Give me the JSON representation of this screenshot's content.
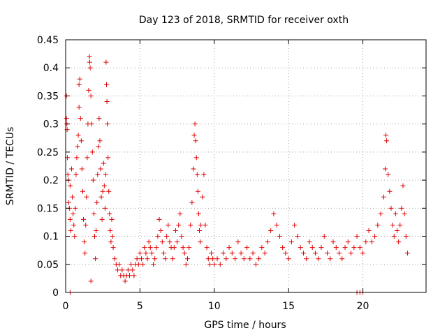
{
  "chart_data": {
    "type": "scatter",
    "title": "Day 123 of 2018, SRMTID for receiver oxth",
    "xlabel": "GPS time / hours",
    "ylabel": "SRMTID / TECUs",
    "xlim": [
      0,
      24.25
    ],
    "ylim": [
      0,
      0.45
    ],
    "xticks": [
      0,
      5,
      10,
      15,
      20
    ],
    "xtick_labels": [
      "0",
      "5",
      "10",
      "15",
      "20"
    ],
    "yticks": [
      0,
      0.05,
      0.1,
      0.15,
      0.2,
      0.25,
      0.3,
      0.35,
      0.4,
      0.45
    ],
    "ytick_labels": [
      "0",
      "0.05",
      "0.1",
      "0.15",
      "0.2",
      "0.25",
      "0.3",
      "0.35",
      "0.4",
      "0.45"
    ],
    "grid": true,
    "marker": "+",
    "marker_color": "#e00000",
    "series": [
      {
        "points": [
          [
            0.05,
            0.35
          ],
          [
            0.05,
            0.31
          ],
          [
            0.08,
            0.3
          ],
          [
            0.1,
            0.29
          ],
          [
            0.12,
            0.24
          ],
          [
            0.15,
            0.21
          ],
          [
            0.18,
            0.2
          ],
          [
            0.2,
            0.16
          ],
          [
            0.25,
            0.15
          ],
          [
            0.3,
            0.13
          ],
          [
            0.35,
            0.11
          ],
          [
            0.3,
            0.19
          ],
          [
            0.4,
            0.22
          ],
          [
            0.45,
            0.17
          ],
          [
            0.5,
            0.14
          ],
          [
            0.55,
            0.12
          ],
          [
            0.6,
            0.1
          ],
          [
            0.65,
            0.15
          ],
          [
            0.7,
            0.21
          ],
          [
            0.75,
            0.24
          ],
          [
            0.8,
            0.26
          ],
          [
            0.85,
            0.28
          ],
          [
            0.9,
            0.33
          ],
          [
            0.95,
            0.38
          ],
          [
            0.9,
            0.37
          ],
          [
            1.0,
            0.31
          ],
          [
            1.05,
            0.27
          ],
          [
            1.1,
            0.22
          ],
          [
            1.15,
            0.18
          ],
          [
            1.2,
            0.13
          ],
          [
            1.25,
            0.09
          ],
          [
            1.3,
            0.07
          ],
          [
            1.35,
            0.12
          ],
          [
            1.4,
            0.17
          ],
          [
            1.45,
            0.24
          ],
          [
            1.5,
            0.3
          ],
          [
            1.55,
            0.36
          ],
          [
            1.6,
            0.42
          ],
          [
            1.62,
            0.41
          ],
          [
            1.65,
            0.4
          ],
          [
            1.7,
            0.35
          ],
          [
            1.75,
            0.3
          ],
          [
            1.8,
            0.25
          ],
          [
            1.85,
            0.2
          ],
          [
            1.9,
            0.14
          ],
          [
            1.95,
            0.1
          ],
          [
            2.0,
            0.06
          ],
          [
            1.7,
            0.02
          ],
          [
            2.05,
            0.11
          ],
          [
            2.1,
            0.16
          ],
          [
            2.15,
            0.21
          ],
          [
            2.2,
            0.26
          ],
          [
            2.25,
            0.31
          ],
          [
            2.3,
            0.27
          ],
          [
            2.35,
            0.22
          ],
          [
            2.4,
            0.17
          ],
          [
            2.45,
            0.13
          ],
          [
            2.5,
            0.18
          ],
          [
            2.55,
            0.23
          ],
          [
            2.6,
            0.19
          ],
          [
            2.65,
            0.15
          ],
          [
            2.7,
            0.21
          ],
          [
            2.72,
            0.41
          ],
          [
            2.75,
            0.37
          ],
          [
            2.78,
            0.34
          ],
          [
            2.8,
            0.3
          ],
          [
            2.85,
            0.24
          ],
          [
            2.9,
            0.18
          ],
          [
            2.95,
            0.14
          ],
          [
            3.0,
            0.11
          ],
          [
            3.05,
            0.09
          ],
          [
            3.1,
            0.13
          ],
          [
            3.15,
            0.1
          ],
          [
            3.2,
            0.08
          ],
          [
            3.3,
            0.06
          ],
          [
            3.4,
            0.05
          ],
          [
            3.5,
            0.04
          ],
          [
            3.6,
            0.05
          ],
          [
            3.7,
            0.03
          ],
          [
            3.8,
            0.04
          ],
          [
            3.9,
            0.03
          ],
          [
            4.0,
            0.02
          ],
          [
            4.1,
            0.03
          ],
          [
            4.2,
            0.04
          ],
          [
            4.3,
            0.03
          ],
          [
            4.4,
            0.05
          ],
          [
            4.5,
            0.04
          ],
          [
            4.6,
            0.03
          ],
          [
            4.7,
            0.05
          ],
          [
            4.8,
            0.06
          ],
          [
            4.9,
            0.05
          ],
          [
            5.0,
            0.07
          ],
          [
            5.1,
            0.06
          ],
          [
            5.2,
            0.05
          ],
          [
            5.3,
            0.08
          ],
          [
            5.4,
            0.07
          ],
          [
            5.5,
            0.06
          ],
          [
            5.6,
            0.09
          ],
          [
            5.7,
            0.08
          ],
          [
            5.8,
            0.07
          ],
          [
            5.9,
            0.05
          ],
          [
            6.0,
            0.06
          ],
          [
            6.1,
            0.08
          ],
          [
            6.2,
            0.1
          ],
          [
            6.3,
            0.13
          ],
          [
            6.4,
            0.11
          ],
          [
            6.5,
            0.09
          ],
          [
            6.6,
            0.07
          ],
          [
            6.7,
            0.06
          ],
          [
            6.8,
            0.1
          ],
          [
            6.9,
            0.12
          ],
          [
            7.0,
            0.09
          ],
          [
            7.1,
            0.08
          ],
          [
            7.2,
            0.06
          ],
          [
            7.3,
            0.08
          ],
          [
            7.4,
            0.11
          ],
          [
            7.5,
            0.09
          ],
          [
            7.6,
            0.12
          ],
          [
            7.7,
            0.14
          ],
          [
            7.8,
            0.1
          ],
          [
            7.9,
            0.08
          ],
          [
            8.0,
            0.07
          ],
          [
            8.1,
            0.05
          ],
          [
            8.2,
            0.06
          ],
          [
            8.3,
            0.08
          ],
          [
            8.4,
            0.12
          ],
          [
            8.5,
            0.16
          ],
          [
            8.6,
            0.22
          ],
          [
            8.65,
            0.28
          ],
          [
            8.7,
            0.3
          ],
          [
            8.75,
            0.27
          ],
          [
            8.8,
            0.24
          ],
          [
            8.85,
            0.21
          ],
          [
            8.9,
            0.18
          ],
          [
            8.95,
            0.14
          ],
          [
            9.0,
            0.11
          ],
          [
            9.05,
            0.09
          ],
          [
            9.1,
            0.12
          ],
          [
            9.2,
            0.17
          ],
          [
            9.3,
            0.21
          ],
          [
            9.4,
            0.12
          ],
          [
            9.5,
            0.08
          ],
          [
            9.6,
            0.06
          ],
          [
            9.7,
            0.05
          ],
          [
            9.8,
            0.07
          ],
          [
            9.9,
            0.06
          ],
          [
            10.0,
            0.05
          ],
          [
            10.2,
            0.06
          ],
          [
            10.4,
            0.05
          ],
          [
            10.6,
            0.07
          ],
          [
            10.8,
            0.06
          ],
          [
            11.0,
            0.08
          ],
          [
            11.2,
            0.07
          ],
          [
            11.4,
            0.06
          ],
          [
            11.6,
            0.09
          ],
          [
            11.8,
            0.07
          ],
          [
            12.0,
            0.06
          ],
          [
            12.2,
            0.08
          ],
          [
            12.4,
            0.06
          ],
          [
            12.6,
            0.07
          ],
          [
            12.8,
            0.05
          ],
          [
            13.0,
            0.06
          ],
          [
            13.2,
            0.08
          ],
          [
            13.4,
            0.07
          ],
          [
            13.6,
            0.09
          ],
          [
            13.8,
            0.11
          ],
          [
            14.0,
            0.14
          ],
          [
            14.2,
            0.12
          ],
          [
            14.4,
            0.1
          ],
          [
            14.6,
            0.08
          ],
          [
            14.8,
            0.07
          ],
          [
            15.0,
            0.06
          ],
          [
            15.2,
            0.09
          ],
          [
            15.4,
            0.12
          ],
          [
            15.6,
            0.1
          ],
          [
            15.8,
            0.08
          ],
          [
            16.0,
            0.07
          ],
          [
            16.2,
            0.06
          ],
          [
            16.4,
            0.09
          ],
          [
            16.6,
            0.08
          ],
          [
            16.8,
            0.07
          ],
          [
            17.0,
            0.06
          ],
          [
            17.2,
            0.08
          ],
          [
            17.4,
            0.1
          ],
          [
            17.6,
            0.07
          ],
          [
            17.8,
            0.06
          ],
          [
            18.0,
            0.09
          ],
          [
            18.2,
            0.08
          ],
          [
            18.4,
            0.07
          ],
          [
            18.6,
            0.06
          ],
          [
            18.8,
            0.08
          ],
          [
            19.0,
            0.09
          ],
          [
            19.2,
            0.07
          ],
          [
            19.4,
            0.08
          ],
          [
            19.6,
            0.1
          ],
          [
            19.8,
            0.08
          ],
          [
            20.0,
            0.07
          ],
          [
            20.2,
            0.09
          ],
          [
            20.4,
            0.11
          ],
          [
            20.6,
            0.09
          ],
          [
            20.8,
            0.1
          ],
          [
            21.0,
            0.12
          ],
          [
            21.2,
            0.14
          ],
          [
            21.4,
            0.17
          ],
          [
            21.5,
            0.22
          ],
          [
            21.55,
            0.28
          ],
          [
            21.6,
            0.27
          ],
          [
            21.7,
            0.21
          ],
          [
            21.8,
            0.18
          ],
          [
            21.9,
            0.15
          ],
          [
            22.0,
            0.12
          ],
          [
            22.1,
            0.1
          ],
          [
            22.2,
            0.14
          ],
          [
            22.3,
            0.11
          ],
          [
            22.4,
            0.09
          ],
          [
            22.5,
            0.12
          ],
          [
            22.6,
            0.15
          ],
          [
            22.7,
            0.19
          ],
          [
            22.8,
            0.14
          ],
          [
            22.9,
            0.1
          ],
          [
            23.0,
            0.07
          ],
          [
            0.3,
            0.0
          ],
          [
            19.6,
            0.0
          ],
          [
            19.8,
            0.0
          ],
          [
            20.0,
            0.0
          ]
        ]
      }
    ]
  }
}
